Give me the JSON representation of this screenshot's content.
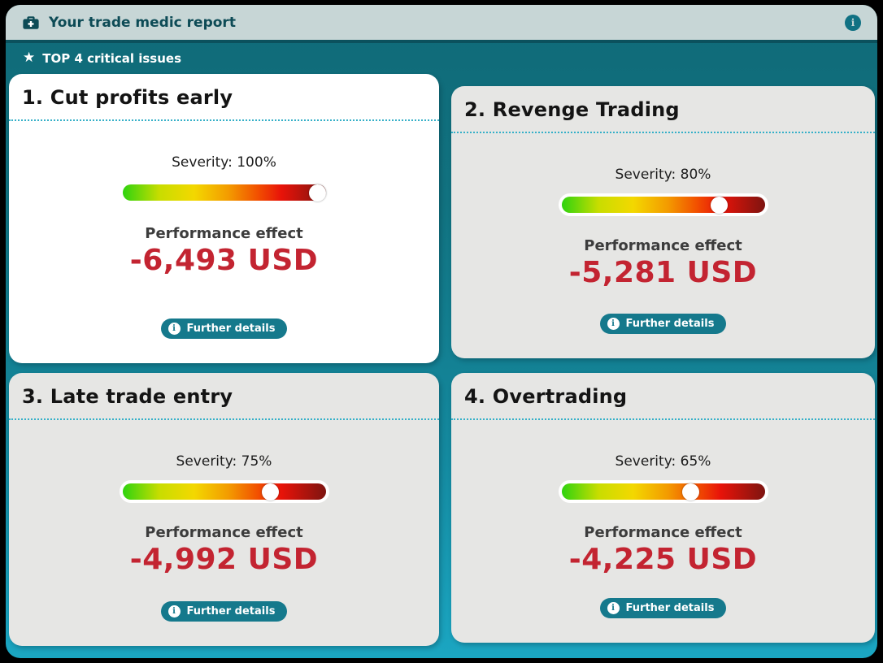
{
  "header": {
    "title": "Your trade medic report",
    "icons": {
      "left": "first-aid-kit-icon",
      "right": "info-icon"
    }
  },
  "section": {
    "icon": "star-icon",
    "label": "TOP 4 critical issues"
  },
  "cards": [
    {
      "title": "1. Cut profits early",
      "severity_label": "Severity: 100%",
      "severity_pct": 100,
      "effect_label": "Performance effect",
      "effect_value": "-6,493 USD",
      "details_label": "Further details",
      "background": "#ffffff"
    },
    {
      "title": "2. Revenge Trading",
      "severity_label": "Severity: 80%",
      "severity_pct": 80,
      "effect_label": "Performance effect",
      "effect_value": "-5,281 USD",
      "details_label": "Further details",
      "background": "#e6e6e4"
    },
    {
      "title": "3. Late trade entry",
      "severity_label": "Severity: 75%",
      "severity_pct": 75,
      "effect_label": "Performance effect",
      "effect_value": "-4,992 USD",
      "details_label": "Further details",
      "background": "#e6e6e4"
    },
    {
      "title": "4. Overtrading",
      "severity_label": "Severity: 65%",
      "severity_pct": 65,
      "effect_label": "Performance effect",
      "effect_value": "-4,225 USD",
      "details_label": "Further details",
      "background": "#e6e6e4"
    }
  ],
  "colors": {
    "accent_teal": "#15798c",
    "header_bg": "#c7d6d6",
    "header_text": "#0d4b56",
    "background_top": "#0f6a78",
    "background_bottom": "#1ba6c2",
    "card_gray": "#e6e6e4",
    "card_white": "#ffffff",
    "value_red": "#c32431",
    "divider_cyan": "#35b0c8",
    "severity_gradient": [
      "#2ed30f",
      "#f3d800",
      "#f39b00",
      "#e81309",
      "#7d1410"
    ]
  }
}
